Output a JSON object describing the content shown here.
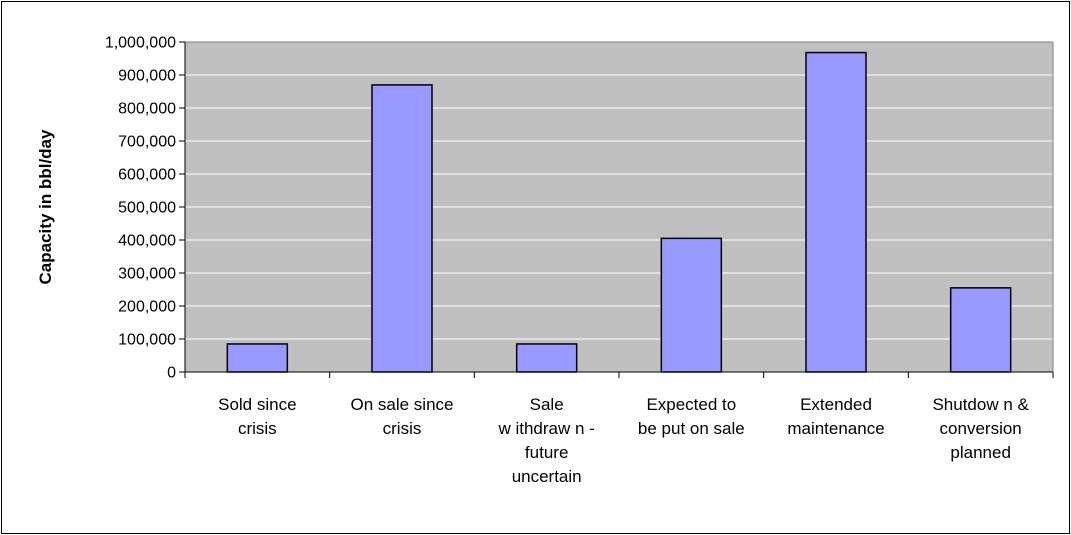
{
  "chart_data": {
    "type": "bar",
    "title": "",
    "xlabel": "",
    "ylabel": "Capacity in bbl/day",
    "categories": [
      "Sold since crisis",
      "On sale since crisis",
      "Sale w ithdraw n - future uncertain",
      "Expected to be put on sale",
      "Extended maintenance",
      "Shutdow n & conversion planned"
    ],
    "category_lines": [
      [
        "Sold since",
        "crisis"
      ],
      [
        "On sale since",
        "crisis"
      ],
      [
        "Sale",
        "w ithdraw n -",
        "future",
        "uncertain"
      ],
      [
        "Expected to",
        "be put on sale"
      ],
      [
        "Extended",
        "maintenance"
      ],
      [
        "Shutdow n &",
        "conversion",
        "planned"
      ]
    ],
    "values": [
      85000,
      870000,
      85000,
      405000,
      968000,
      255000
    ],
    "ylim": [
      0,
      1000000
    ],
    "ytick_step": 100000,
    "yticks": [
      "0",
      "100,000",
      "200,000",
      "300,000",
      "400,000",
      "500,000",
      "600,000",
      "700,000",
      "800,000",
      "900,000",
      "1,000,000"
    ],
    "grid": true,
    "legend": "none",
    "colors": {
      "plot_background": "#c0c0c0",
      "bar_fill": "#9999ff",
      "bar_stroke": "#000000",
      "grid": "#ffffff"
    }
  }
}
